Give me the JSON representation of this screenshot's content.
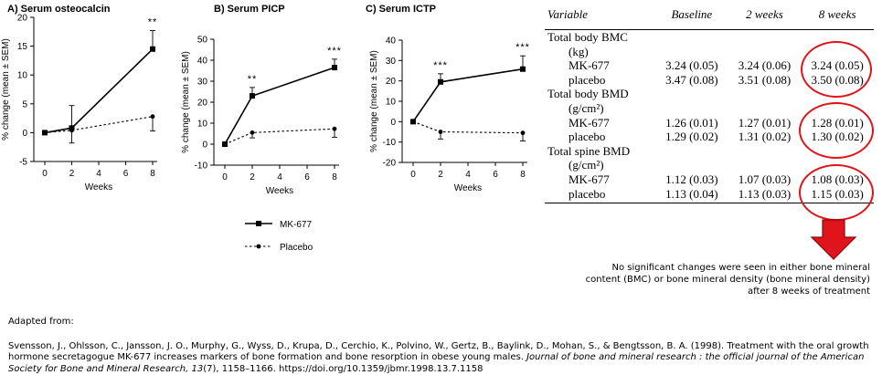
{
  "chart_data": [
    {
      "type": "line",
      "title": "A) Serum osteocalcin",
      "xlabel": "Weeks",
      "ylabel": "% change (mean ± SEM)",
      "x": [
        0,
        2,
        8
      ],
      "xticks": [
        0,
        2,
        4,
        6,
        8
      ],
      "yticks": [
        -5,
        0,
        5,
        10,
        15,
        20
      ],
      "ylim": [
        -5,
        20
      ],
      "series": [
        {
          "name": "MK-677",
          "values": [
            0,
            0.8,
            14.5
          ],
          "err_up": [
            0,
            0,
            3.2
          ],
          "err_down": [
            0,
            0,
            0
          ]
        },
        {
          "name": "Placebo",
          "values": [
            0,
            0.4,
            2.8
          ],
          "err_up": [
            0,
            4.3,
            0
          ],
          "err_down": [
            0,
            2.2,
            2.5
          ]
        }
      ],
      "annotations": [
        {
          "x": 8,
          "text": "**"
        }
      ]
    },
    {
      "type": "line",
      "title": "B) Serum PICP",
      "xlabel": "Weeks",
      "ylabel": "% change (mean ± SEM)",
      "x": [
        0,
        2,
        8
      ],
      "xticks": [
        0,
        2,
        4,
        6,
        8
      ],
      "yticks": [
        -10,
        0,
        10,
        20,
        30,
        40,
        50
      ],
      "ylim": [
        -10,
        50
      ],
      "series": [
        {
          "name": "MK-677",
          "values": [
            0,
            23,
            36.5
          ],
          "err_up": [
            0,
            4,
            4
          ],
          "err_down": [
            0,
            0,
            0
          ]
        },
        {
          "name": "Placebo",
          "values": [
            0,
            5.5,
            7.3
          ],
          "err_up": [
            0,
            0,
            0
          ],
          "err_down": [
            0,
            2.5,
            4
          ]
        }
      ],
      "annotations": [
        {
          "x": 2,
          "text": "**"
        },
        {
          "x": 8,
          "text": "***"
        }
      ]
    },
    {
      "type": "line",
      "title": "C) Serum ICTP",
      "xlabel": "Weeks",
      "ylabel": "% change (mean ± SEM)",
      "x": [
        0,
        2,
        8
      ],
      "xticks": [
        0,
        2,
        4,
        6,
        8
      ],
      "yticks": [
        -20,
        -10,
        0,
        10,
        20,
        30,
        40
      ],
      "ylim": [
        -20,
        40
      ],
      "series": [
        {
          "name": "MK-677",
          "values": [
            0,
            19.5,
            25.8
          ],
          "err_up": [
            0,
            4,
            6.5
          ],
          "err_down": [
            0,
            0,
            0
          ]
        },
        {
          "name": "Placebo",
          "values": [
            0,
            -5,
            -5.5
          ],
          "err_up": [
            0,
            0,
            0
          ],
          "err_down": [
            0,
            3.5,
            4
          ]
        }
      ],
      "annotations": [
        {
          "x": 2,
          "text": "***"
        },
        {
          "x": 8,
          "text": "***"
        }
      ]
    },
    {
      "type": "table",
      "columns": [
        "Variable",
        "Baseline",
        "2 weeks",
        "8 weeks"
      ],
      "rows": [
        {
          "label": "Total body BMC",
          "values": [
            "",
            "",
            ""
          ],
          "kind": "group"
        },
        {
          "label": "(kg)",
          "values": [
            "",
            "",
            ""
          ],
          "kind": "unit"
        },
        {
          "label": "MK-677",
          "values": [
            "3.24 (0.05)",
            "3.24 (0.06)",
            "3.24 (0.05)"
          ],
          "kind": "data"
        },
        {
          "label": "placebo",
          "values": [
            "3.47 (0.08)",
            "3.51 (0.08)",
            "3.50 (0.08)"
          ],
          "kind": "data"
        },
        {
          "label": "Total body BMD",
          "values": [
            "",
            "",
            ""
          ],
          "kind": "group"
        },
        {
          "label": "(g/cm²)",
          "values": [
            "",
            "",
            ""
          ],
          "kind": "unit"
        },
        {
          "label": "MK-677",
          "values": [
            "1.26 (0.01)",
            "1.27 (0.01)",
            "1.28 (0.01)"
          ],
          "kind": "data"
        },
        {
          "label": "placebo",
          "values": [
            "1.29 (0.02)",
            "1.31 (0.02)",
            "1.30 (0.02)"
          ],
          "kind": "data"
        },
        {
          "label": "Total spine BMD",
          "values": [
            "",
            "",
            ""
          ],
          "kind": "group"
        },
        {
          "label": "(g/cm²)",
          "values": [
            "",
            "",
            ""
          ],
          "kind": "unit"
        },
        {
          "label": "MK-677",
          "values": [
            "1.12 (0.03)",
            "1.07 (0.03)",
            "1.08 (0.03)"
          ],
          "kind": "data"
        },
        {
          "label": "placebo",
          "values": [
            "1.13 (0.04)",
            "1.13 (0.03)",
            "1.15 (0.03)"
          ],
          "kind": "data"
        }
      ]
    }
  ],
  "legend": {
    "mk677": "MK-677",
    "placebo": "Placebo"
  },
  "highlight_color": "#e0141b",
  "note": "No significant changes were seen in either bone mineral content (BMC) or bone mineral density (bone mineral density) after 8 weeks of treatment",
  "adapted": "Adapted from:",
  "citation": {
    "plain": "Svensson, J., Ohlsson, C., Jansson, J. O., Murphy, G., Wyss, D., Krupa, D., Cerchio, K., Polvino, W., Gertz, B., Baylink, D., Mohan, S., & Bengtsson, B. A. (1998). Treatment with the oral growth hormone secretagogue MK-677 increases markers of bone formation and bone resorption in obese young males. ",
    "journal": "Journal of bone and mineral research : the official journal of the American Society for Bone and Mineral Research, 13",
    "rest": "(7), 1158–1166. https://doi.org/10.1359/jbmr.1998.13.7.1158"
  }
}
